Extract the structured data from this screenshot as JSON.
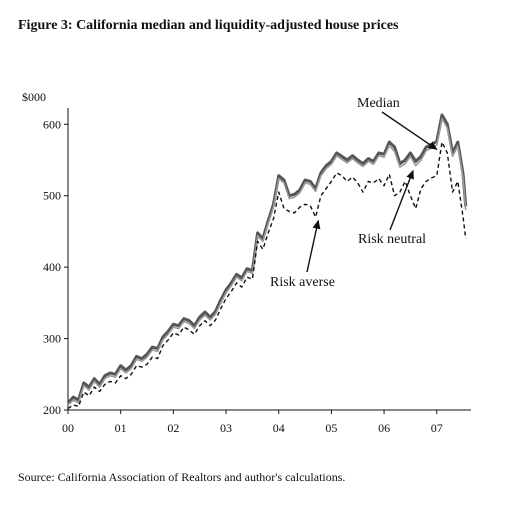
{
  "figure": {
    "title": "Figure 3: California median and liquidity-adjusted house prices",
    "source": "Source: California Association of Realtors and author's calculations."
  },
  "chart_data": {
    "type": "line",
    "y_unit_label": "$000",
    "xlim": [
      0,
      7.65
    ],
    "ylim": [
      200,
      620
    ],
    "y_ticks": [
      200,
      300,
      400,
      500,
      600
    ],
    "x_ticks": [
      0,
      1,
      2,
      3,
      4,
      5,
      6,
      7
    ],
    "x_tick_labels": [
      "00",
      "01",
      "02",
      "03",
      "04",
      "05",
      "06",
      "07"
    ],
    "grid": false,
    "legend": "none",
    "annotations": [
      {
        "text": "Median",
        "series": "median",
        "arrow_to": [
          7.0,
          565
        ]
      },
      {
        "text": "Risk neutral",
        "series": "risk_neutral",
        "arrow_to": [
          6.55,
          535
        ]
      },
      {
        "text": "Risk averse",
        "series": "risk_averse",
        "arrow_to": [
          4.75,
          465
        ]
      }
    ],
    "series": [
      {
        "id": "median",
        "color": "#555555",
        "style": "solid",
        "points": [
          [
            0,
            210
          ],
          [
            0.1,
            218
          ],
          [
            0.2,
            214
          ],
          [
            0.3,
            238
          ],
          [
            0.4,
            232
          ],
          [
            0.5,
            244
          ],
          [
            0.6,
            236
          ],
          [
            0.7,
            248
          ],
          [
            0.8,
            252
          ],
          [
            0.9,
            250
          ],
          [
            1.0,
            262
          ],
          [
            1.1,
            256
          ],
          [
            1.2,
            262
          ],
          [
            1.3,
            275
          ],
          [
            1.4,
            272
          ],
          [
            1.5,
            278
          ],
          [
            1.6,
            288
          ],
          [
            1.7,
            286
          ],
          [
            1.8,
            302
          ],
          [
            1.9,
            310
          ],
          [
            2.0,
            320
          ],
          [
            2.1,
            318
          ],
          [
            2.2,
            328
          ],
          [
            2.3,
            325
          ],
          [
            2.4,
            318
          ],
          [
            2.5,
            330
          ],
          [
            2.6,
            337
          ],
          [
            2.7,
            330
          ],
          [
            2.8,
            338
          ],
          [
            2.9,
            354
          ],
          [
            3.0,
            368
          ],
          [
            3.1,
            378
          ],
          [
            3.2,
            390
          ],
          [
            3.3,
            385
          ],
          [
            3.4,
            398
          ],
          [
            3.5,
            395
          ],
          [
            3.6,
            448
          ],
          [
            3.7,
            440
          ],
          [
            3.8,
            465
          ],
          [
            3.9,
            488
          ],
          [
            4.0,
            528
          ],
          [
            4.1,
            522
          ],
          [
            4.2,
            500
          ],
          [
            4.3,
            502
          ],
          [
            4.4,
            508
          ],
          [
            4.5,
            522
          ],
          [
            4.6,
            520
          ],
          [
            4.7,
            510
          ],
          [
            4.8,
            532
          ],
          [
            4.9,
            542
          ],
          [
            5.0,
            548
          ],
          [
            5.1,
            560
          ],
          [
            5.2,
            555
          ],
          [
            5.3,
            550
          ],
          [
            5.4,
            556
          ],
          [
            5.5,
            550
          ],
          [
            5.6,
            545
          ],
          [
            5.7,
            552
          ],
          [
            5.8,
            548
          ],
          [
            5.9,
            560
          ],
          [
            6.0,
            558
          ],
          [
            6.1,
            575
          ],
          [
            6.2,
            568
          ],
          [
            6.3,
            545
          ],
          [
            6.4,
            550
          ],
          [
            6.5,
            560
          ],
          [
            6.6,
            548
          ],
          [
            6.7,
            555
          ],
          [
            6.8,
            568
          ],
          [
            6.9,
            572
          ],
          [
            7.0,
            576
          ],
          [
            7.1,
            613
          ],
          [
            7.2,
            600
          ],
          [
            7.3,
            560
          ],
          [
            7.4,
            575
          ],
          [
            7.5,
            530
          ],
          [
            7.55,
            485
          ]
        ]
      },
      {
        "id": "risk_neutral",
        "color": "#9a9a9a",
        "style": "solid",
        "points": [
          [
            0,
            207
          ],
          [
            0.1,
            214
          ],
          [
            0.2,
            210
          ],
          [
            0.3,
            234
          ],
          [
            0.4,
            228
          ],
          [
            0.5,
            240
          ],
          [
            0.6,
            232
          ],
          [
            0.7,
            244
          ],
          [
            0.8,
            248
          ],
          [
            0.9,
            246
          ],
          [
            1.0,
            258
          ],
          [
            1.1,
            252
          ],
          [
            1.2,
            258
          ],
          [
            1.3,
            271
          ],
          [
            1.4,
            268
          ],
          [
            1.5,
            274
          ],
          [
            1.6,
            284
          ],
          [
            1.7,
            282
          ],
          [
            1.8,
            298
          ],
          [
            1.9,
            306
          ],
          [
            2.0,
            316
          ],
          [
            2.1,
            314
          ],
          [
            2.2,
            324
          ],
          [
            2.3,
            321
          ],
          [
            2.4,
            314
          ],
          [
            2.5,
            326
          ],
          [
            2.6,
            333
          ],
          [
            2.7,
            326
          ],
          [
            2.8,
            334
          ],
          [
            2.9,
            350
          ],
          [
            3.0,
            364
          ],
          [
            3.1,
            374
          ],
          [
            3.2,
            386
          ],
          [
            3.3,
            381
          ],
          [
            3.4,
            394
          ],
          [
            3.5,
            391
          ],
          [
            3.6,
            444
          ],
          [
            3.7,
            436
          ],
          [
            3.8,
            461
          ],
          [
            3.9,
            484
          ],
          [
            4.0,
            524
          ],
          [
            4.1,
            518
          ],
          [
            4.2,
            496
          ],
          [
            4.3,
            498
          ],
          [
            4.4,
            504
          ],
          [
            4.5,
            518
          ],
          [
            4.6,
            516
          ],
          [
            4.7,
            506
          ],
          [
            4.8,
            528
          ],
          [
            4.9,
            538
          ],
          [
            5.0,
            544
          ],
          [
            5.1,
            556
          ],
          [
            5.2,
            551
          ],
          [
            5.3,
            546
          ],
          [
            5.4,
            552
          ],
          [
            5.5,
            546
          ],
          [
            5.6,
            541
          ],
          [
            5.7,
            548
          ],
          [
            5.8,
            544
          ],
          [
            5.9,
            556
          ],
          [
            6.0,
            554
          ],
          [
            6.1,
            570
          ],
          [
            6.2,
            562
          ],
          [
            6.3,
            540
          ],
          [
            6.4,
            545
          ],
          [
            6.5,
            555
          ],
          [
            6.6,
            542
          ],
          [
            6.7,
            550
          ],
          [
            6.8,
            563
          ],
          [
            6.9,
            567
          ],
          [
            7.0,
            571
          ],
          [
            7.1,
            608
          ],
          [
            7.2,
            595
          ],
          [
            7.3,
            555
          ],
          [
            7.4,
            570
          ],
          [
            7.5,
            525
          ],
          [
            7.55,
            480
          ]
        ]
      },
      {
        "id": "risk_averse",
        "color": "#111111",
        "style": "dashed",
        "points": [
          [
            0,
            202
          ],
          [
            0.1,
            207
          ],
          [
            0.2,
            205
          ],
          [
            0.3,
            225
          ],
          [
            0.4,
            220
          ],
          [
            0.5,
            232
          ],
          [
            0.6,
            226
          ],
          [
            0.7,
            236
          ],
          [
            0.8,
            240
          ],
          [
            0.9,
            238
          ],
          [
            1.0,
            248
          ],
          [
            1.1,
            244
          ],
          [
            1.2,
            250
          ],
          [
            1.3,
            262
          ],
          [
            1.4,
            260
          ],
          [
            1.5,
            264
          ],
          [
            1.6,
            274
          ],
          [
            1.7,
            272
          ],
          [
            1.8,
            290
          ],
          [
            1.9,
            298
          ],
          [
            2.0,
            308
          ],
          [
            2.1,
            305
          ],
          [
            2.2,
            316
          ],
          [
            2.3,
            312
          ],
          [
            2.4,
            306
          ],
          [
            2.5,
            318
          ],
          [
            2.6,
            325
          ],
          [
            2.7,
            318
          ],
          [
            2.8,
            326
          ],
          [
            2.9,
            342
          ],
          [
            3.0,
            356
          ],
          [
            3.1,
            366
          ],
          [
            3.2,
            378
          ],
          [
            3.3,
            372
          ],
          [
            3.4,
            386
          ],
          [
            3.5,
            383
          ],
          [
            3.6,
            436
          ],
          [
            3.7,
            425
          ],
          [
            3.8,
            448
          ],
          [
            3.9,
            468
          ],
          [
            4.0,
            505
          ],
          [
            4.1,
            482
          ],
          [
            4.2,
            478
          ],
          [
            4.3,
            476
          ],
          [
            4.4,
            484
          ],
          [
            4.5,
            488
          ],
          [
            4.6,
            486
          ],
          [
            4.7,
            470
          ],
          [
            4.8,
            500
          ],
          [
            4.9,
            510
          ],
          [
            5.0,
            520
          ],
          [
            5.1,
            532
          ],
          [
            5.2,
            528
          ],
          [
            5.3,
            520
          ],
          [
            5.4,
            526
          ],
          [
            5.5,
            518
          ],
          [
            5.6,
            505
          ],
          [
            5.7,
            520
          ],
          [
            5.8,
            518
          ],
          [
            5.9,
            524
          ],
          [
            6.0,
            514
          ],
          [
            6.1,
            530
          ],
          [
            6.2,
            500
          ],
          [
            6.3,
            505
          ],
          [
            6.4,
            520
          ],
          [
            6.5,
            500
          ],
          [
            6.6,
            482
          ],
          [
            6.7,
            510
          ],
          [
            6.8,
            520
          ],
          [
            6.9,
            525
          ],
          [
            7.0,
            528
          ],
          [
            7.1,
            575
          ],
          [
            7.2,
            560
          ],
          [
            7.3,
            505
          ],
          [
            7.4,
            520
          ],
          [
            7.5,
            470
          ],
          [
            7.55,
            440
          ]
        ]
      }
    ]
  }
}
